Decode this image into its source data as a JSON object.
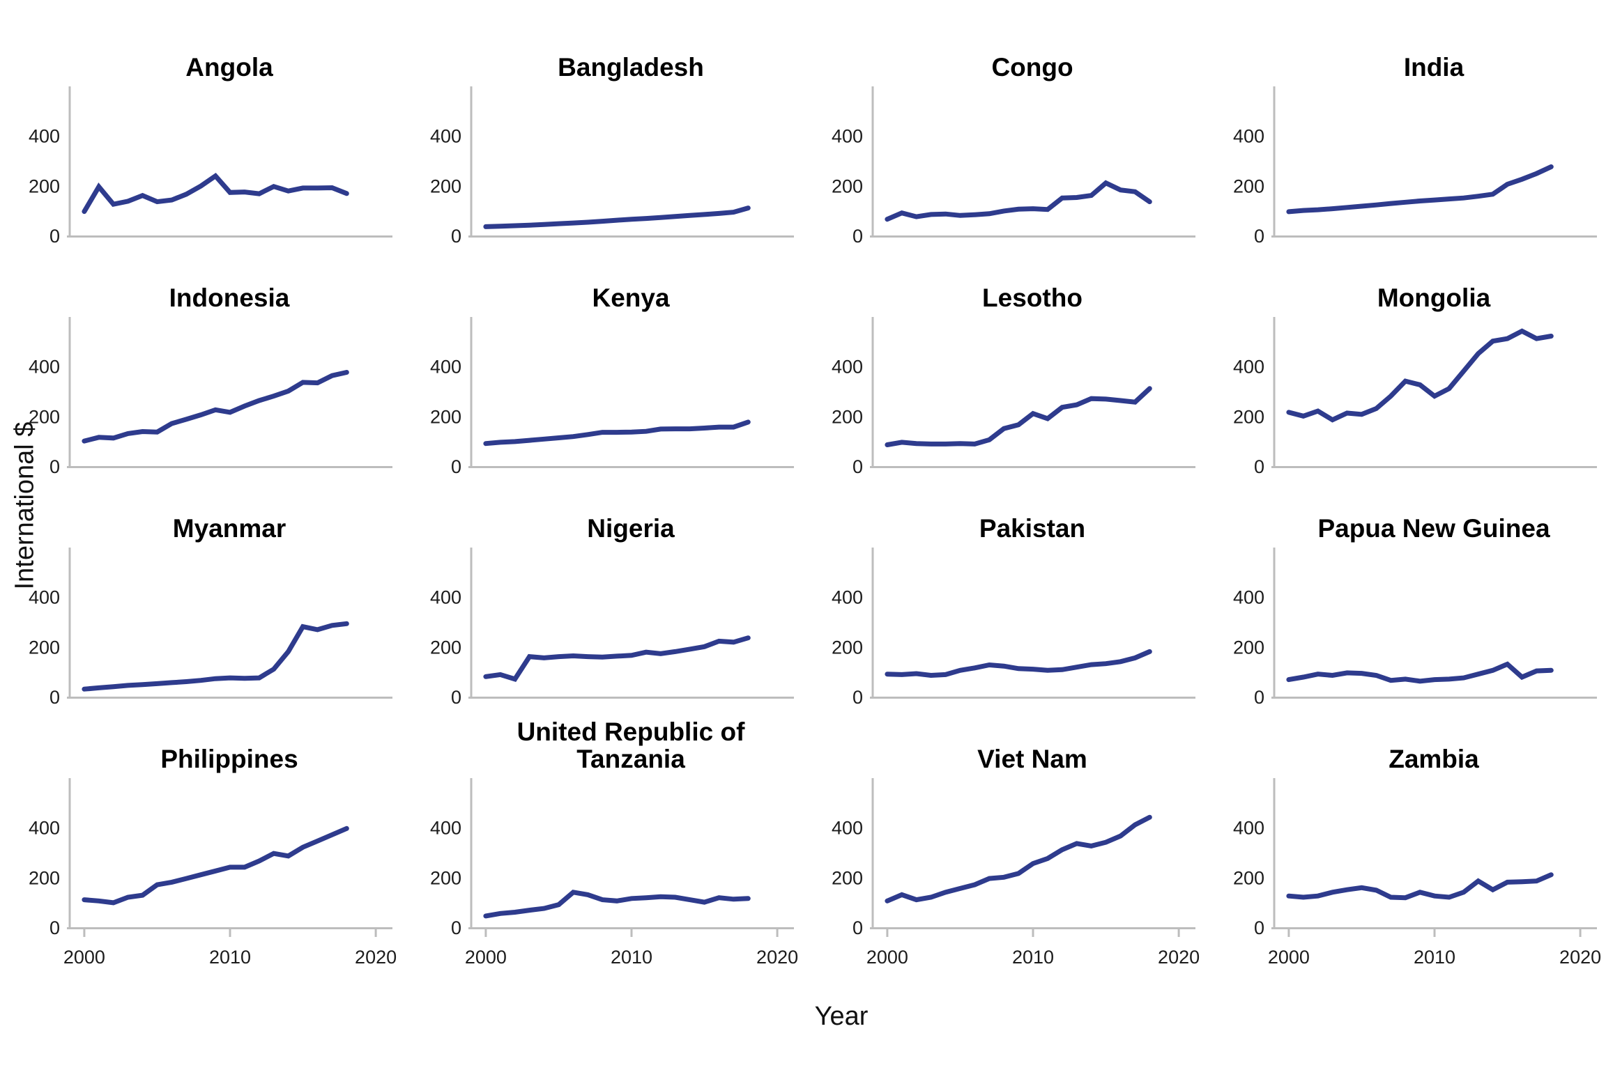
{
  "chart_data": {
    "type": "line",
    "title": "",
    "xlabel": "Year",
    "ylabel": "International $",
    "x": [
      2000,
      2001,
      2002,
      2003,
      2004,
      2005,
      2006,
      2007,
      2008,
      2009,
      2010,
      2011,
      2012,
      2013,
      2014,
      2015,
      2016,
      2017,
      2018
    ],
    "xlim": [
      1999,
      2021
    ],
    "ylim": [
      0,
      580
    ],
    "yticks": [
      0,
      200,
      400
    ],
    "xticks": [
      2000,
      2010,
      2020
    ],
    "grid": false,
    "legend": "none",
    "line_color": "#2e3b8d",
    "axis_color": "#bdbdbd",
    "tick_label_color": "#1c1c1c",
    "panels": [
      {
        "name": "Angola",
        "values": [
          96,
          195,
          125,
          137,
          160,
          135,
          142,
          165,
          198,
          238,
          172,
          174,
          167,
          196,
          178,
          190,
          190,
          191,
          168
        ]
      },
      {
        "name": "Bangladesh",
        "values": [
          35,
          37,
          39,
          41,
          44,
          47,
          50,
          53,
          57,
          61,
          65,
          68,
          72,
          76,
          80,
          84,
          88,
          93,
          110
        ]
      },
      {
        "name": "Congo",
        "values": [
          65,
          90,
          75,
          84,
          86,
          80,
          83,
          87,
          98,
          105,
          107,
          104,
          150,
          152,
          160,
          210,
          182,
          175,
          135
        ]
      },
      {
        "name": "India",
        "values": [
          95,
          100,
          103,
          107,
          112,
          117,
          122,
          128,
          133,
          138,
          142,
          146,
          150,
          157,
          165,
          205,
          225,
          248,
          275
        ]
      },
      {
        "name": "Indonesia",
        "values": [
          100,
          115,
          112,
          130,
          138,
          136,
          170,
          187,
          205,
          225,
          215,
          240,
          262,
          280,
          300,
          335,
          333,
          362,
          375
        ]
      },
      {
        "name": "Kenya",
        "values": [
          90,
          95,
          98,
          103,
          108,
          113,
          118,
          126,
          135,
          135,
          136,
          139,
          148,
          149,
          149,
          152,
          156,
          156,
          176
        ]
      },
      {
        "name": "Lesotho",
        "values": [
          85,
          95,
          90,
          88,
          88,
          90,
          88,
          105,
          150,
          165,
          210,
          190,
          235,
          245,
          270,
          268,
          262,
          256,
          310
        ]
      },
      {
        "name": "Mongolia",
        "values": [
          215,
          200,
          220,
          185,
          212,
          207,
          230,
          280,
          340,
          325,
          280,
          310,
          380,
          450,
          500,
          510,
          540,
          510,
          520
        ]
      },
      {
        "name": "Myanmar",
        "values": [
          30,
          35,
          40,
          45,
          48,
          52,
          56,
          60,
          65,
          72,
          75,
          73,
          75,
          110,
          180,
          280,
          268,
          285,
          292
        ]
      },
      {
        "name": "Nigeria",
        "values": [
          80,
          88,
          70,
          160,
          155,
          160,
          163,
          160,
          158,
          162,
          165,
          178,
          172,
          180,
          190,
          200,
          222,
          218,
          235
        ]
      },
      {
        "name": "Pakistan",
        "values": [
          90,
          88,
          92,
          85,
          88,
          105,
          115,
          127,
          122,
          112,
          110,
          105,
          108,
          118,
          128,
          132,
          140,
          155,
          180
        ]
      },
      {
        "name": "Papua New Guinea",
        "values": [
          68,
          78,
          90,
          85,
          95,
          93,
          85,
          65,
          70,
          62,
          68,
          70,
          75,
          90,
          105,
          130,
          78,
          103,
          105
        ]
      },
      {
        "name": "Philippines",
        "values": [
          110,
          105,
          98,
          120,
          128,
          170,
          180,
          195,
          210,
          225,
          240,
          240,
          265,
          295,
          285,
          320,
          345,
          370,
          395
        ]
      },
      {
        "name": "United Republic of Tanzania",
        "values": [
          45,
          55,
          60,
          68,
          75,
          90,
          140,
          130,
          110,
          105,
          115,
          118,
          122,
          120,
          110,
          100,
          118,
          112,
          115
        ]
      },
      {
        "name": "Viet Nam",
        "values": [
          105,
          130,
          110,
          120,
          140,
          155,
          170,
          195,
          200,
          215,
          255,
          275,
          310,
          335,
          325,
          340,
          365,
          410,
          440
        ]
      },
      {
        "name": "Zambia",
        "values": [
          125,
          120,
          125,
          140,
          150,
          158,
          148,
          120,
          118,
          140,
          125,
          120,
          140,
          185,
          150,
          180,
          182,
          185,
          210
        ]
      }
    ]
  }
}
